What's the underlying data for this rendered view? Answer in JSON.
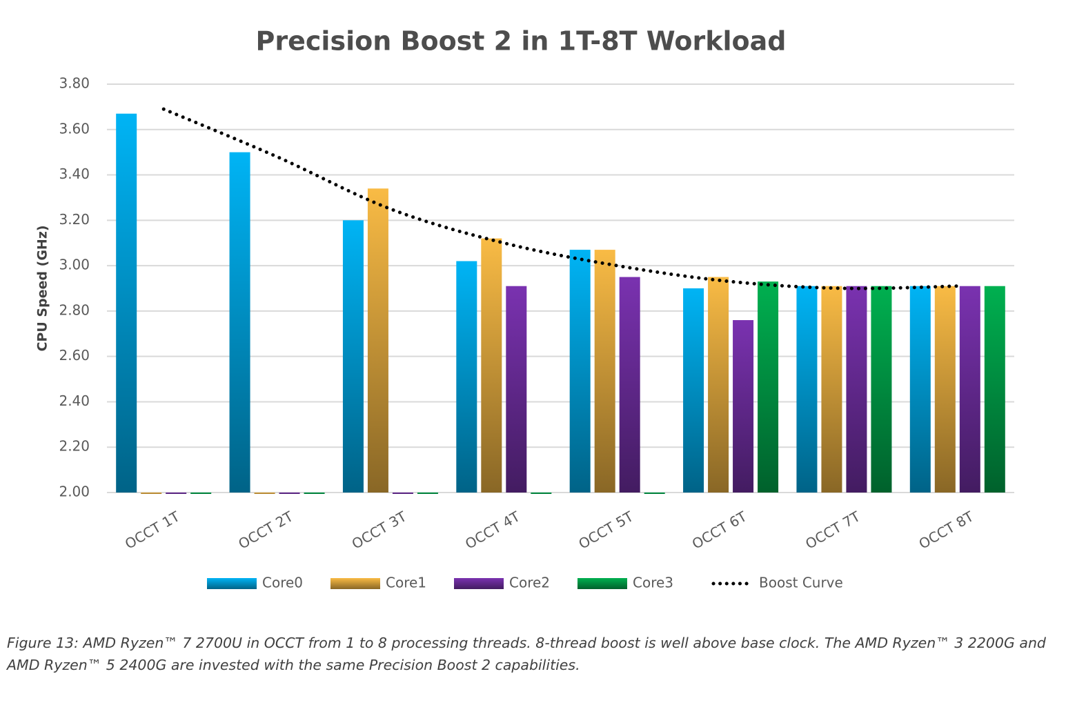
{
  "chart_data": {
    "type": "bar",
    "title": "Precision Boost 2 in 1T-8T Workload",
    "y_label": "CPU Speed (GHz)",
    "categories": [
      "OCCT 1T",
      "OCCT 2T",
      "OCCT 3T",
      "OCCT 4T",
      "OCCT 5T",
      "OCCT 6T",
      "OCCT 7T",
      "OCCT 8T"
    ],
    "series": [
      {
        "name": "Core0",
        "color": "#00b4f5",
        "values": [
          3.67,
          3.5,
          3.2,
          3.02,
          3.07,
          2.9,
          2.91,
          2.91
        ]
      },
      {
        "name": "Core1",
        "color": "#f9bb45",
        "values": [
          2.0,
          2.0,
          3.34,
          3.12,
          3.07,
          2.95,
          2.91,
          2.91
        ]
      },
      {
        "name": "Core2",
        "color": "#7a32b0",
        "values": [
          2.0,
          2.0,
          2.0,
          2.91,
          2.95,
          2.76,
          2.91,
          2.91
        ]
      },
      {
        "name": "Core3",
        "color": "#00b050",
        "values": [
          2.0,
          2.0,
          2.0,
          2.0,
          2.0,
          2.93,
          2.91,
          2.91
        ]
      },
      {
        "name": "Boost Curve",
        "type": "line",
        "style": "dotted",
        "color": "#000000",
        "values": [
          3.69,
          3.48,
          3.25,
          3.1,
          3.0,
          2.93,
          2.9,
          2.91
        ]
      }
    ],
    "ylim": [
      2.0,
      3.8
    ],
    "yticks": [
      {
        "value": 2.0,
        "label": "2.00"
      },
      {
        "value": 2.2,
        "label": "2.20"
      },
      {
        "value": 2.4,
        "label": "2.40"
      },
      {
        "value": 2.6,
        "label": "2.60"
      },
      {
        "value": 2.8,
        "label": "2.80"
      },
      {
        "value": 3.0,
        "label": "3.00"
      },
      {
        "value": 3.2,
        "label": "3.20"
      },
      {
        "value": 3.4,
        "label": "3.40"
      },
      {
        "value": 3.6,
        "label": "3.60"
      },
      {
        "value": 3.8,
        "label": "3.80"
      }
    ],
    "grid": true,
    "legend": "bottom"
  },
  "caption": "Figure 13: AMD Ryzen™ 7 2700U in OCCT from 1 to 8 processing threads. 8-thread boost is well above base clock. The AMD Ryzen™ 3 2200G and AMD Ryzen™ 5 2400G are invested with the same Precision Boost 2 capabilities."
}
